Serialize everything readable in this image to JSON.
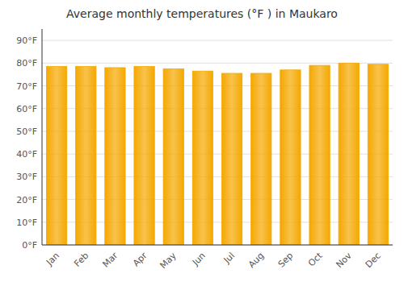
{
  "chart_data": {
    "type": "bar",
    "title": "Average monthly temperatures (°F ) in Maukaro",
    "categories": [
      "Jan",
      "Feb",
      "Mar",
      "Apr",
      "May",
      "Jun",
      "Jul",
      "Aug",
      "Sep",
      "Oct",
      "Nov",
      "Dec"
    ],
    "values": [
      78.5,
      78.5,
      78.0,
      78.5,
      77.5,
      76.5,
      75.5,
      75.5,
      77.0,
      79.0,
      80.0,
      79.5
    ],
    "color": "#F5A800",
    "ylim": [
      0,
      95
    ],
    "yticks": [
      {
        "value": 0,
        "label": "0°F"
      },
      {
        "value": 10,
        "label": "10°F"
      },
      {
        "value": 20,
        "label": "20°F"
      },
      {
        "value": 30,
        "label": "30°F"
      },
      {
        "value": 40,
        "label": "40°F"
      },
      {
        "value": 50,
        "label": "50°F"
      },
      {
        "value": 60,
        "label": "60°F"
      },
      {
        "value": 70,
        "label": "70°F"
      },
      {
        "value": 80,
        "label": "80°F"
      },
      {
        "value": 90,
        "label": "90°F"
      }
    ],
    "grid": true
  }
}
